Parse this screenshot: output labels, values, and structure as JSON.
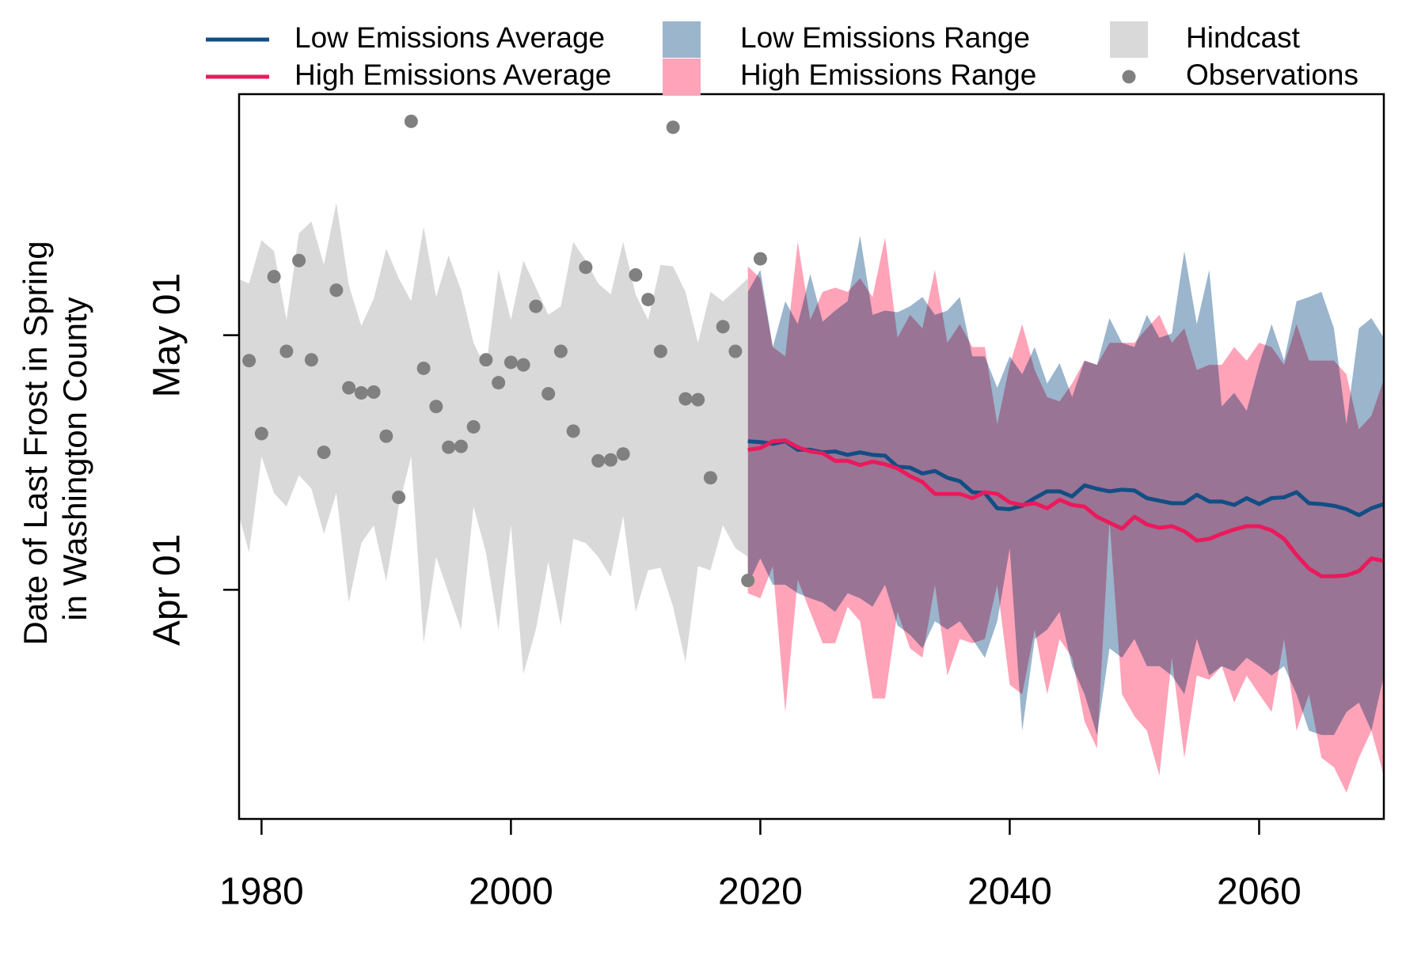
{
  "chart_data": {
    "type": "band-line",
    "ylabel": [
      "Date of Last Frost in Spring",
      "in Washington County"
    ],
    "xlim": [
      1978.2,
      2070
    ],
    "xticks": [
      1980,
      2000,
      2020,
      2040,
      2060
    ],
    "ylim": [
      64,
      149.4
    ],
    "yticks": [
      {
        "value": 91,
        "label": "Apr 01"
      },
      {
        "value": 121,
        "label": "May 01"
      }
    ],
    "series": [
      {
        "name": "Low Emissions Average",
        "kind": "line",
        "color": "#124e84",
        "x": [
          2019,
          2020,
          2021,
          2022,
          2023,
          2024,
          2025,
          2026,
          2027,
          2028,
          2029,
          2030,
          2031,
          2032,
          2033,
          2034,
          2035,
          2036,
          2037,
          2038,
          2039,
          2040,
          2041,
          2042,
          2043,
          2044,
          2045,
          2046,
          2047,
          2048,
          2049,
          2050,
          2051,
          2052,
          2053,
          2054,
          2055,
          2056,
          2057,
          2058,
          2059,
          2060,
          2061,
          2062,
          2063,
          2064,
          2065,
          2066,
          2067,
          2068,
          2069,
          2070
        ],
        "values": [
          108.5,
          108.4,
          108.2,
          108.5,
          107.5,
          107.5,
          107.2,
          107.3,
          106.9,
          107.2,
          106.9,
          106.8,
          105.5,
          105.4,
          104.7,
          105.0,
          104.2,
          103.8,
          102.5,
          102.4,
          100.6,
          100.5,
          100.9,
          101.8,
          102.6,
          102.6,
          102.0,
          103.3,
          102.9,
          102.6,
          102.8,
          102.7,
          101.8,
          101.5,
          101.2,
          101.2,
          102.2,
          101.4,
          101.4,
          101.0,
          101.8,
          101.1,
          101.8,
          101.9,
          102.5,
          101.2,
          101.1,
          100.9,
          100.5,
          99.8,
          100.6,
          101.1
        ]
      },
      {
        "name": "High Emissions Average",
        "kind": "line",
        "color": "#ea1a5c",
        "x": [
          2019,
          2020,
          2021,
          2022,
          2023,
          2024,
          2025,
          2026,
          2027,
          2028,
          2029,
          2030,
          2031,
          2032,
          2033,
          2034,
          2035,
          2036,
          2037,
          2038,
          2039,
          2040,
          2041,
          2042,
          2043,
          2044,
          2045,
          2046,
          2047,
          2048,
          2049,
          2050,
          2051,
          2052,
          2053,
          2054,
          2055,
          2056,
          2057,
          2058,
          2059,
          2060,
          2061,
          2062,
          2063,
          2064,
          2065,
          2066,
          2067,
          2068,
          2069,
          2070
        ],
        "values": [
          107.5,
          107.7,
          108.5,
          108.6,
          107.8,
          107.3,
          107.1,
          106.2,
          106.2,
          105.7,
          106.1,
          105.8,
          105.3,
          104.4,
          103.7,
          102.3,
          102.3,
          102.3,
          101.8,
          102.5,
          102.3,
          101.3,
          101.0,
          101.2,
          100.6,
          101.6,
          101.0,
          100.8,
          99.6,
          98.9,
          98.2,
          99.6,
          98.7,
          98.3,
          98.5,
          97.9,
          96.8,
          97.0,
          97.6,
          98.1,
          98.5,
          98.5,
          98.0,
          97.0,
          95.1,
          93.5,
          92.6,
          92.6,
          92.7,
          93.2,
          94.7,
          94.4
        ]
      },
      {
        "name": "Low Emissions Range",
        "kind": "band",
        "color": "#9ab5cc",
        "x": [
          2019,
          2020,
          2021,
          2022,
          2023,
          2024,
          2025,
          2026,
          2027,
          2028,
          2029,
          2030,
          2031,
          2032,
          2033,
          2034,
          2035,
          2036,
          2037,
          2038,
          2039,
          2040,
          2041,
          2042,
          2043,
          2044,
          2045,
          2046,
          2047,
          2048,
          2049,
          2050,
          2051,
          2052,
          2053,
          2054,
          2055,
          2056,
          2057,
          2058,
          2059,
          2060,
          2061,
          2062,
          2063,
          2064,
          2065,
          2066,
          2067,
          2068,
          2069,
          2070
        ],
        "upper": [
          126.1,
          128.7,
          119.6,
          125.0,
          122.3,
          128.2,
          122.6,
          123.9,
          125.0,
          132.7,
          123.4,
          123.9,
          123.7,
          124.4,
          125.5,
          123.4,
          123.9,
          125.5,
          118.5,
          118.5,
          114.8,
          118.5,
          116.4,
          119.6,
          115.3,
          117.7,
          113.7,
          118.0,
          117.5,
          123.0,
          120.1,
          119.6,
          123.4,
          120.7,
          121.2,
          130.9,
          122.3,
          128.7,
          112.6,
          114.2,
          112.1,
          117.5,
          122.3,
          118.0,
          125.0,
          125.5,
          126.1,
          121.8,
          110.5,
          121.8,
          123.0,
          120.7
        ],
        "lower": [
          91.6,
          94.7,
          91.6,
          91.6,
          90.6,
          90.0,
          89.5,
          88.4,
          90.6,
          90.0,
          89.0,
          91.6,
          86.8,
          85.7,
          84.1,
          87.3,
          86.3,
          87.3,
          85.2,
          83.0,
          87.3,
          95.9,
          74.4,
          85.2,
          86.3,
          88.4,
          82.0,
          78.7,
          73.9,
          84.1,
          83.0,
          85.2,
          82.0,
          82.0,
          80.9,
          78.7,
          85.2,
          80.9,
          82.0,
          81.4,
          83.0,
          82.0,
          80.9,
          82.0,
          78.7,
          74.4,
          73.9,
          73.9,
          76.6,
          77.7,
          74.4,
          80.9
        ]
      },
      {
        "name": "High Emissions Range",
        "kind": "band",
        "color": "#ffa3b9",
        "x": [
          2019,
          2020,
          2021,
          2022,
          2023,
          2024,
          2025,
          2026,
          2027,
          2028,
          2029,
          2030,
          2031,
          2032,
          2033,
          2034,
          2035,
          2036,
          2037,
          2038,
          2039,
          2040,
          2041,
          2042,
          2043,
          2044,
          2045,
          2046,
          2047,
          2048,
          2049,
          2050,
          2051,
          2052,
          2053,
          2054,
          2055,
          2056,
          2057,
          2058,
          2059,
          2060,
          2061,
          2062,
          2063,
          2064,
          2065,
          2066,
          2067,
          2068,
          2069,
          2070
        ],
        "upper": [
          129.1,
          127.7,
          119.6,
          118.5,
          132.0,
          122.8,
          126.1,
          126.6,
          126.1,
          127.7,
          125.5,
          132.5,
          120.7,
          123.4,
          121.8,
          128.7,
          120.1,
          122.3,
          119.6,
          119.6,
          110.5,
          117.5,
          122.3,
          116.9,
          113.7,
          113.2,
          115.3,
          118.0,
          117.5,
          120.1,
          120.1,
          120.1,
          121.8,
          123.4,
          120.1,
          121.8,
          116.9,
          117.5,
          117.5,
          119.6,
          118.0,
          120.1,
          119.6,
          117.5,
          122.3,
          118.0,
          118.0,
          118.0,
          116.4,
          109.9,
          111.5,
          115.8
        ],
        "lower": [
          90.6,
          90.0,
          93.8,
          76.6,
          92.2,
          88.4,
          84.7,
          84.7,
          89.0,
          87.3,
          78.2,
          78.2,
          88.4,
          84.1,
          83.0,
          91.6,
          80.9,
          85.2,
          84.7,
          85.2,
          91.6,
          79.8,
          78.7,
          86.3,
          78.7,
          85.2,
          83.0,
          75.5,
          72.3,
          99.2,
          78.7,
          76.1,
          74.4,
          69.1,
          83.0,
          71.2,
          80.9,
          80.4,
          82.0,
          77.7,
          80.9,
          78.7,
          76.6,
          85.2,
          74.4,
          78.7,
          71.2,
          70.1,
          67.1,
          71.2,
          74.4,
          69.1
        ]
      },
      {
        "name": "Hindcast",
        "kind": "band",
        "color": "#d9d9d9",
        "x": [
          1978,
          1979,
          1980,
          1981,
          1982,
          1983,
          1984,
          1985,
          1986,
          1987,
          1988,
          1989,
          1990,
          1991,
          1992,
          1993,
          1994,
          1995,
          1996,
          1997,
          1998,
          1999,
          2000,
          2001,
          2002,
          2003,
          2004,
          2005,
          2006,
          2007,
          2008,
          2009,
          2010,
          2011,
          2012,
          2013,
          2014,
          2015,
          2016,
          2017,
          2018,
          2019
        ],
        "upper": [
          127.7,
          127.1,
          132.2,
          130.9,
          122.8,
          133.0,
          134.4,
          129.3,
          136.6,
          126.9,
          122.1,
          125.3,
          131.2,
          127.7,
          125.0,
          133.8,
          125.5,
          130.4,
          126.3,
          120.1,
          117.1,
          128.7,
          122.8,
          129.8,
          126.6,
          123.4,
          124.4,
          132.0,
          129.8,
          127.1,
          125.8,
          132.0,
          125.8,
          122.8,
          129.3,
          129.1,
          126.1,
          120.1,
          126.1,
          125.0,
          126.3,
          127.7
        ],
        "lower": [
          100.8,
          95.4,
          106.7,
          102.4,
          100.8,
          104.5,
          102.9,
          97.6,
          102.4,
          89.5,
          96.5,
          98.6,
          92.0,
          100.8,
          106.7,
          84.7,
          94.9,
          90.6,
          86.3,
          100.8,
          95.4,
          86.3,
          98.6,
          81.1,
          86.3,
          94.3,
          86.8,
          97.0,
          96.5,
          94.9,
          92.5,
          99.7,
          88.4,
          93.3,
          93.6,
          89.0,
          82.5,
          93.8,
          93.3,
          98.6,
          95.9,
          94.9
        ]
      },
      {
        "name": "Observations",
        "kind": "points",
        "color": "#808080",
        "x": [
          1979,
          1980,
          1981,
          1982,
          1983,
          1984,
          1985,
          1986,
          1987,
          1988,
          1989,
          1990,
          1991,
          1992,
          1993,
          1994,
          1995,
          1996,
          1997,
          1998,
          1999,
          2000,
          2001,
          2002,
          2003,
          2004,
          2005,
          2006,
          2007,
          2008,
          2009,
          2010,
          2011,
          2012,
          2013,
          2014,
          2015,
          2016,
          2017,
          2018,
          2019,
          2020
        ],
        "values": [
          118.0,
          109.4,
          127.9,
          119.1,
          129.8,
          118.1,
          107.2,
          126.3,
          114.8,
          114.2,
          114.3,
          109.1,
          101.9,
          146.2,
          117.1,
          112.6,
          107.8,
          107.9,
          110.2,
          118.1,
          115.4,
          117.8,
          117.5,
          124.4,
          114.1,
          119.1,
          109.7,
          129.0,
          106.2,
          106.3,
          107.0,
          128.1,
          125.2,
          119.1,
          145.5,
          113.5,
          113.4,
          104.2,
          122.0,
          119.1,
          92.1,
          130.0
        ]
      }
    ]
  }
}
